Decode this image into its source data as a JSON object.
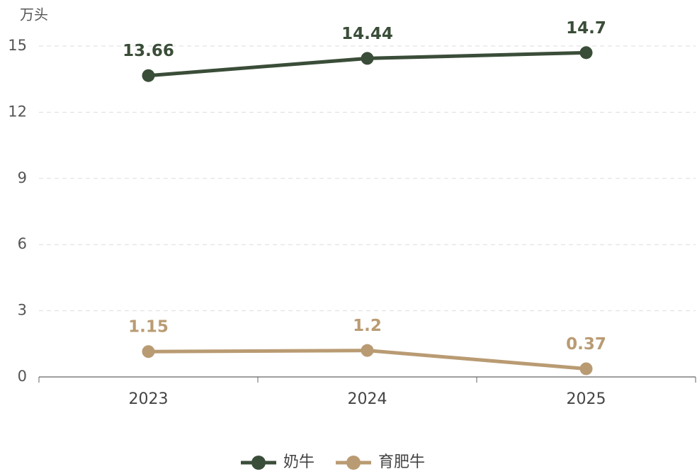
{
  "chart_data": {
    "type": "line",
    "y_label": "万头",
    "categories": [
      "2023",
      "2024",
      "2025"
    ],
    "series": [
      {
        "name": "奶牛",
        "color": "#3a4d38",
        "values": [
          13.66,
          14.44,
          14.7
        ]
      },
      {
        "name": "育肥牛",
        "color": "#b99b73",
        "values": [
          1.15,
          1.2,
          0.37
        ]
      }
    ],
    "ylim": [
      0,
      15
    ],
    "yticks": [
      0,
      3,
      6,
      9,
      12,
      15
    ],
    "grid": true,
    "legend": "bottom"
  }
}
